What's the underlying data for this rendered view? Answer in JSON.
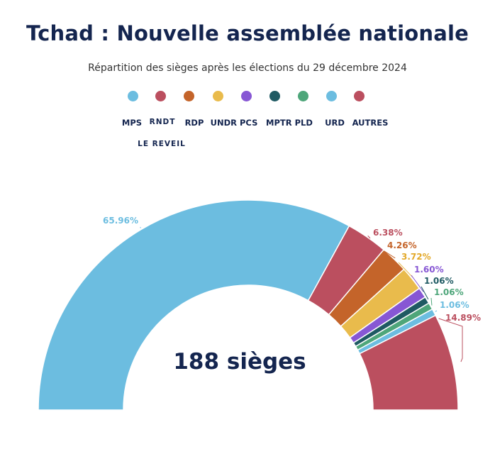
{
  "chart_data": {
    "type": "pie",
    "variant": "half-donut",
    "title": "Tchad : Nouvelle assemblée nationale",
    "subtitle": "Répartition des sièges après les élections du 29 décembre 2024",
    "center_label": "188 sièges",
    "legend_rows": [
      [
        "MPS",
        "RNDT",
        "RDP",
        "UNDR PCS",
        "MPTR PLD",
        "URD",
        "AUTRES"
      ],
      [
        "LE REVEIL"
      ]
    ],
    "series": [
      {
        "color": "#6cbde0",
        "value": 65.96,
        "label": "65.96%"
      },
      {
        "color": "#bb4f5f",
        "value": 6.38,
        "label": "6.38%"
      },
      {
        "color": "#c4642a",
        "value": 4.26,
        "label": "4.26%"
      },
      {
        "color": "#e9bb4c",
        "value": 3.72,
        "label": "3.72%"
      },
      {
        "color": "#8757d4",
        "value": 1.6,
        "label": "1.60%"
      },
      {
        "color": "#1f5a63",
        "value": 1.06,
        "label": "1.06%"
      },
      {
        "color": "#4ea67a",
        "value": 1.06,
        "label": "1.06%"
      },
      {
        "color": "#6cbde0",
        "value": 1.06,
        "label": "1.06%"
      },
      {
        "color": "#bb4f5f",
        "value": 14.89,
        "label": "14.89%"
      }
    ],
    "legend_dot_colors": [
      "#6cbde0",
      "#bb4f5f",
      "#c4642a",
      "#e9bb4c",
      "#8757d4",
      "#1f5a63",
      "#4ea67a",
      "#6cbde0",
      "#bb4f5f"
    ]
  }
}
